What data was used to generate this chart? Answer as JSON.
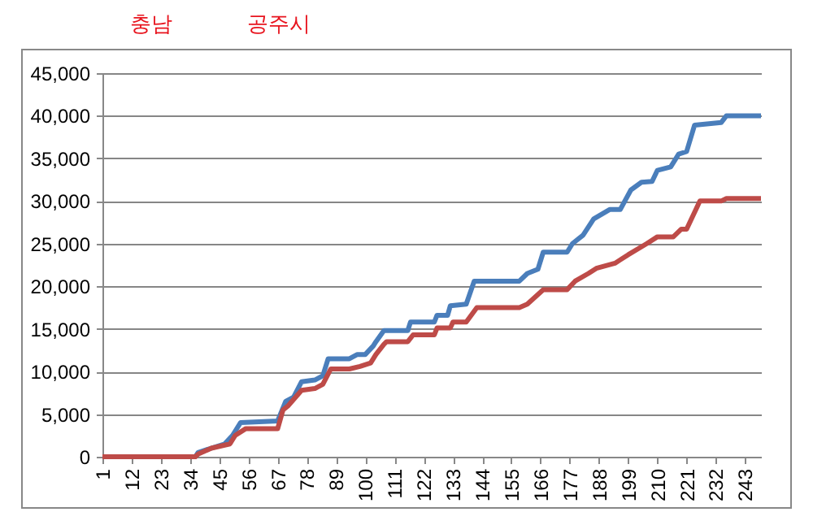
{
  "chart_data": {
    "type": "line",
    "annotations": [
      "충남",
      "공주시"
    ],
    "xlim": [
      1,
      249
    ],
    "xticks": [
      1,
      12,
      23,
      34,
      45,
      56,
      67,
      78,
      89,
      100,
      111,
      122,
      133,
      144,
      155,
      166,
      177,
      188,
      199,
      210,
      221,
      232,
      243
    ],
    "ylim": [
      0,
      45000
    ],
    "yticks": [
      0,
      {
        "value": 5000,
        "label": "5,000"
      },
      {
        "value": 10000,
        "label": "10,000"
      },
      {
        "value": 15000,
        "label": "15,000"
      },
      {
        "value": 20000,
        "label": "20,000"
      },
      {
        "value": 25000,
        "label": "25,000"
      },
      {
        "value": 30000,
        "label": "30,000"
      },
      {
        "value": 35000,
        "label": "35,000"
      },
      {
        "value": 40000,
        "label": "40,000"
      },
      {
        "value": 45000,
        "label": "45,000"
      }
    ],
    "grid": "y",
    "legend": false,
    "marker": "none",
    "line_style": "solid",
    "series": [
      {
        "color": "#4a7ebb",
        "x": [
          1,
          36,
          37,
          42,
          47,
          50,
          53,
          67,
          70,
          73,
          76,
          81,
          84,
          86,
          94,
          97,
          100,
          103,
          104,
          107,
          116,
          117,
          126,
          127,
          131,
          132,
          138,
          141,
          158,
          161,
          165,
          167,
          176,
          178,
          182,
          186,
          192,
          196,
          200,
          204,
          208,
          210,
          215,
          218,
          221,
          224,
          234,
          236,
          249
        ],
        "values": [
          0,
          0,
          500,
          1000,
          1500,
          2500,
          4000,
          4200,
          6500,
          7000,
          8800,
          9000,
          9500,
          11500,
          11500,
          12000,
          12000,
          13000,
          13500,
          14800,
          14800,
          15800,
          15800,
          16600,
          16600,
          17700,
          17900,
          20600,
          20600,
          21500,
          22000,
          24000,
          24000,
          25000,
          26000,
          27900,
          29000,
          29000,
          31300,
          32200,
          32300,
          33600,
          34000,
          35500,
          35800,
          38900,
          39200,
          40000,
          40000
        ]
      },
      {
        "color": "#be4b48",
        "x": [
          1,
          36,
          37,
          42,
          49,
          51,
          55,
          67,
          69,
          71,
          76,
          81,
          84,
          87,
          94,
          98,
          102,
          104,
          107,
          108,
          116,
          118,
          126,
          127,
          132,
          133,
          138,
          142,
          158,
          161,
          167,
          176,
          179,
          184,
          187,
          194,
          199,
          206,
          210,
          216,
          219,
          221,
          226,
          234,
          236,
          249
        ],
        "values": [
          0,
          0,
          300,
          1000,
          1500,
          2500,
          3300,
          3300,
          5500,
          6000,
          7800,
          8000,
          8500,
          10300,
          10300,
          10600,
          11000,
          12000,
          13200,
          13500,
          13500,
          14300,
          14300,
          15100,
          15100,
          15800,
          15800,
          17500,
          17500,
          17900,
          19600,
          19600,
          20600,
          21500,
          22100,
          22700,
          23700,
          25000,
          25800,
          25800,
          26700,
          26700,
          30000,
          30000,
          30300,
          30300
        ]
      }
    ]
  }
}
